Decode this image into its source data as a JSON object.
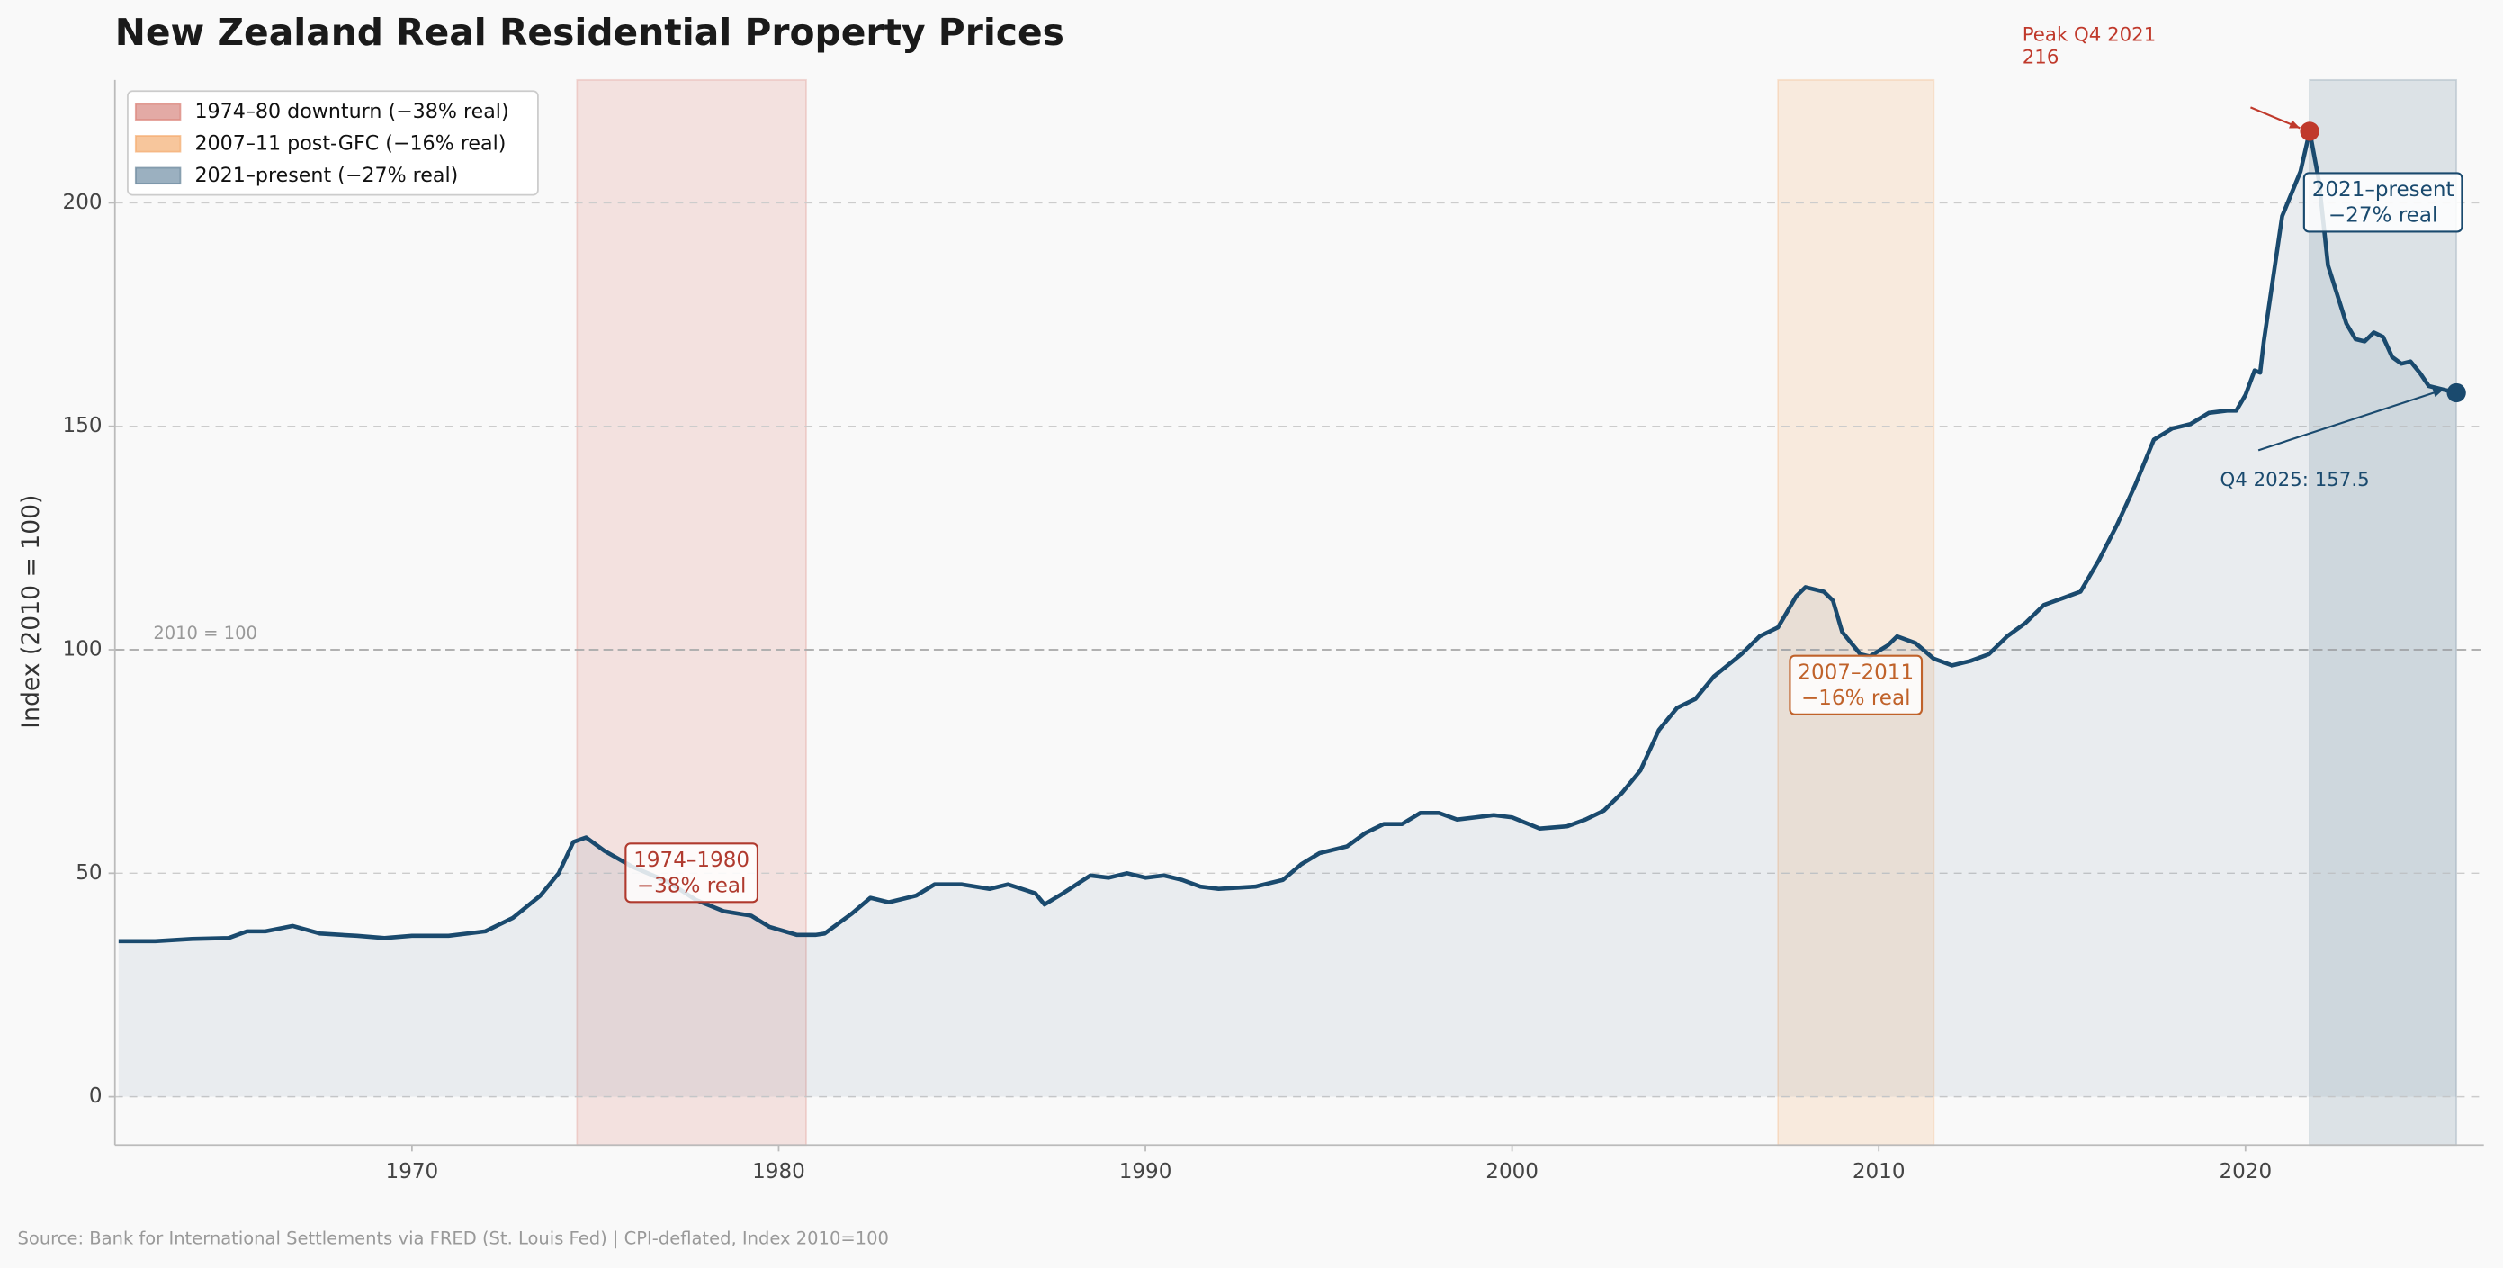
{
  "chart_data": {
    "type": "line",
    "title": "New Zealand Real Residential Property Prices",
    "ylabel": "Index (2010 = 100)",
    "source": "Source: Bank for International Settlements via FRED (St. Louis Fed) | CPI-deflated, Index 2010=100",
    "x": [
      1962,
      1963,
      1964,
      1965,
      1965.5,
      1966,
      1966.75,
      1967.5,
      1968.5,
      1969.25,
      1970,
      1971,
      1972,
      1972.75,
      1973.5,
      1974,
      1974.4,
      1974.75,
      1975.25,
      1976,
      1977,
      1977.75,
      1978.5,
      1979.25,
      1979.75,
      1980.5,
      1981,
      1981.25,
      1982,
      1982.5,
      1983,
      1983.75,
      1984.25,
      1985,
      1985.75,
      1986.25,
      1987,
      1987.25,
      1987.75,
      1988.5,
      1989,
      1989.5,
      1990,
      1990.5,
      1991,
      1991.5,
      1992,
      1993,
      1993.75,
      1994.25,
      1994.75,
      1995.5,
      1996,
      1996.5,
      1997,
      1997.5,
      1998,
      1998.5,
      1999,
      1999.5,
      2000,
      2000.75,
      2001.5,
      2002,
      2002.5,
      2003,
      2003.5,
      2004,
      2004.5,
      2005,
      2005.5,
      2006.25,
      2006.75,
      2007.25,
      2007.75,
      2008,
      2008.5,
      2008.75,
      2009,
      2009.5,
      2009.75,
      2010.25,
      2010.5,
      2011,
      2011.5,
      2012,
      2012.5,
      2013,
      2013.5,
      2014,
      2014.5,
      2015,
      2015.5,
      2016,
      2016.5,
      2017,
      2017.5,
      2018,
      2018.5,
      2019,
      2019.5,
      2019.75,
      2020,
      2020.25,
      2020.4,
      2020.5,
      2020.75,
      2021,
      2021.5,
      2021.75,
      2022,
      2022.25,
      2022.75,
      2023,
      2023.25,
      2023.5,
      2023.75,
      2024,
      2024.25,
      2024.5,
      2024.75,
      2025,
      2025.25,
      2025.75
    ],
    "series": [
      {
        "color": "#1a4a6e",
        "values": [
          34.8,
          34.8,
          35.3,
          35.5,
          37,
          37,
          38.2,
          36.5,
          36,
          35.5,
          36,
          36,
          37,
          40,
          45,
          50,
          57,
          58,
          55,
          51.5,
          48,
          44,
          41.5,
          40.5,
          38,
          36.2,
          36.2,
          36.5,
          41,
          44.5,
          43.5,
          45,
          47.5,
          47.5,
          46.5,
          47.5,
          45.5,
          43,
          45.5,
          49.5,
          49,
          50,
          49,
          49.5,
          48.5,
          47,
          46.5,
          47,
          48.5,
          52,
          54.5,
          56,
          59,
          61,
          61,
          63.5,
          63.5,
          62,
          62.5,
          63,
          62.5,
          60,
          60.5,
          62,
          64,
          68,
          73,
          82,
          87,
          89,
          94,
          99,
          103,
          105,
          112,
          114,
          113,
          111,
          104,
          99,
          98.5,
          101,
          103,
          101.5,
          98,
          96.5,
          97.5,
          99,
          103,
          106,
          110,
          111.5,
          113,
          120,
          128,
          137,
          147,
          149.5,
          150.5,
          153,
          153.5,
          153.5,
          157,
          162.5,
          162,
          169,
          183,
          197,
          207,
          216,
          205,
          186,
          173,
          169.5,
          169,
          171,
          170,
          165.5,
          164,
          164.5,
          162,
          159,
          158.5,
          157.5
        ]
      }
    ],
    "xlim": [
      1961.9,
      2026.5
    ],
    "ylim": [
      -10.8,
      227.5
    ],
    "xticks": [
      1970,
      1980,
      1990,
      2000,
      2010,
      2020
    ],
    "yticks": [
      0,
      50,
      100,
      150,
      200
    ],
    "grid": true,
    "legend_position": "upper left",
    "reference_line": {
      "value": 100,
      "label": "2010 = 100"
    },
    "shaded_regions": [
      {
        "name": "1974–80 downturn (−38% real)",
        "range": [
          1974.5,
          1980.75
        ],
        "color": "#d9776b",
        "legend_color": "#e3aaa5",
        "label": [
          "1974–1980",
          "−38% real"
        ],
        "label_color": "#b03a2e"
      },
      {
        "name": "2007–11 post-GFC (−16% real)",
        "range": [
          2007.25,
          2011.5
        ],
        "color": "#f4a460",
        "legend_color": "#f7c69c",
        "label": [
          "2007–2011",
          "−16% real"
        ],
        "label_color": "#c0622a"
      },
      {
        "name": "2021–present (−27% real)",
        "range": [
          2021.75,
          2025.75
        ],
        "color": "#5a7a90",
        "legend_color": "#9bb0c0",
        "label": [
          "2021–present",
          "−27% real"
        ],
        "label_color": "#1a4a6e"
      }
    ],
    "annotations": [
      {
        "text": [
          "Peak Q4 2021",
          "216"
        ],
        "x": 2021.75,
        "y": 216,
        "color": "#c0392b"
      },
      {
        "text": [
          "Q4 2025: 157.5"
        ],
        "x": 2025.75,
        "y": 157.5,
        "color": "#1a4a6e"
      }
    ]
  }
}
